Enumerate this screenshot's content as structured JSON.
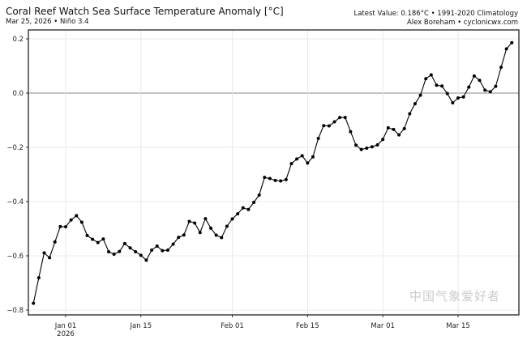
{
  "header": {
    "title": "Coral Reef Watch Sea Surface Temperature Anomaly [°C]",
    "subtitle": "Mar 25, 2026 • Niño 3.4",
    "latest": "Latest Value: 0.186°C • 1991-2020 Climatology",
    "credit": "Alex Boreham • cyclonicwx.com"
  },
  "watermark": "中国气象爱好者",
  "colors": {
    "line": "#000000",
    "zero_line": "#888888",
    "grid": "#e4e4e4"
  },
  "chart_data": {
    "type": "line",
    "title": "Coral Reef Watch Sea Surface Temperature Anomaly [°C]",
    "xlabel": "",
    "ylabel": "",
    "ylim": [
      -0.82,
      0.23
    ],
    "grid": true,
    "start_date": "2025-12-26",
    "end_date": "2026-03-25",
    "y_ticks": [
      {
        "v": 0.2,
        "label": "0.2"
      },
      {
        "v": 0.0,
        "label": "0.0"
      },
      {
        "v": -0.2,
        "label": "−0.2"
      },
      {
        "v": -0.4,
        "label": "−0.4"
      },
      {
        "v": -0.6,
        "label": "−0.6"
      },
      {
        "v": -0.8,
        "label": "−0.8"
      }
    ],
    "x_ticks": [
      {
        "date": "2026-01-01",
        "label": "Jan 01",
        "sub": "2026"
      },
      {
        "date": "2026-01-15",
        "label": "Jan 15"
      },
      {
        "date": "2026-02-01",
        "label": "Feb 01"
      },
      {
        "date": "2026-02-15",
        "label": "Feb 15"
      },
      {
        "date": "2026-03-01",
        "label": "Mar 01"
      },
      {
        "date": "2026-03-15",
        "label": "Mar 15"
      }
    ],
    "series": [
      {
        "name": "Niño 3.4 SST anomaly",
        "values": [
          -0.775,
          -0.681,
          -0.589,
          -0.607,
          -0.549,
          -0.492,
          -0.493,
          -0.468,
          -0.452,
          -0.476,
          -0.525,
          -0.539,
          -0.551,
          -0.538,
          -0.585,
          -0.594,
          -0.584,
          -0.555,
          -0.571,
          -0.585,
          -0.598,
          -0.616,
          -0.579,
          -0.564,
          -0.581,
          -0.579,
          -0.557,
          -0.532,
          -0.523,
          -0.473,
          -0.479,
          -0.514,
          -0.463,
          -0.498,
          -0.524,
          -0.533,
          -0.491,
          -0.464,
          -0.445,
          -0.423,
          -0.429,
          -0.403,
          -0.376,
          -0.311,
          -0.315,
          -0.322,
          -0.324,
          -0.319,
          -0.26,
          -0.243,
          -0.231,
          -0.258,
          -0.235,
          -0.167,
          -0.12,
          -0.121,
          -0.106,
          -0.09,
          -0.09,
          -0.142,
          -0.192,
          -0.208,
          -0.203,
          -0.198,
          -0.191,
          -0.171,
          -0.128,
          -0.134,
          -0.154,
          -0.131,
          -0.076,
          -0.039,
          -0.008,
          0.053,
          0.067,
          0.029,
          0.026,
          -0.002,
          -0.036,
          -0.018,
          -0.014,
          0.022,
          0.063,
          0.047,
          0.011,
          0.005,
          0.025,
          0.095,
          0.163,
          0.186
        ]
      }
    ]
  }
}
